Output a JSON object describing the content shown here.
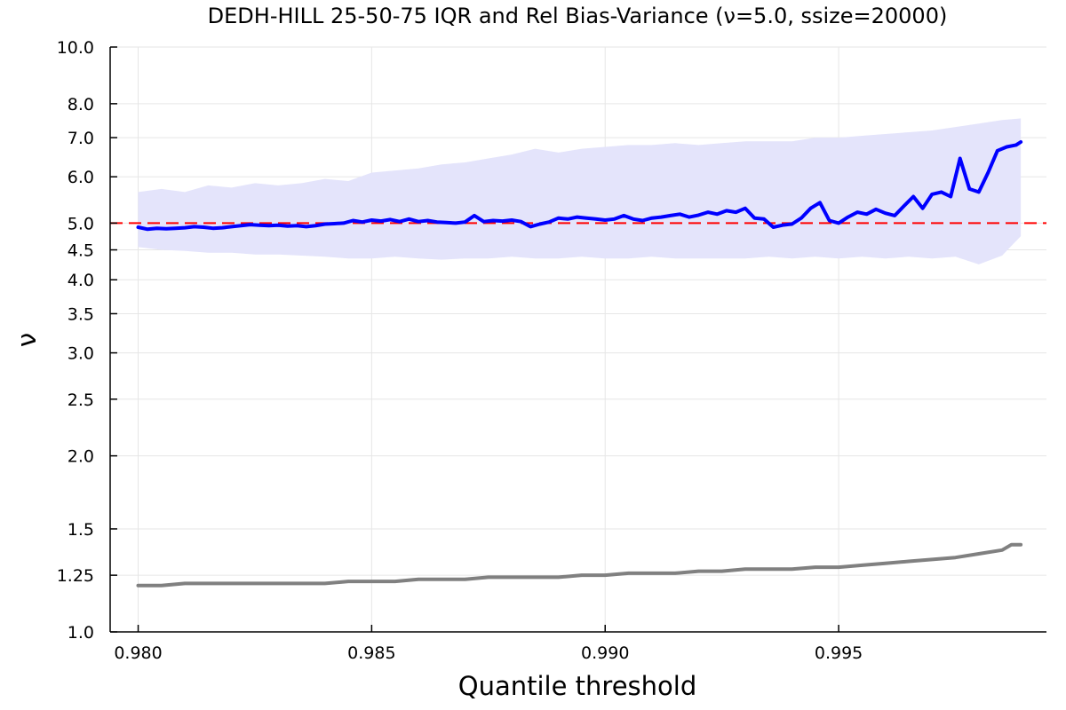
{
  "chart_data": {
    "type": "line",
    "title": "DEDH-HILL 25-50-75 IQR and Rel Bias-Variance (ν=5.0, ssize=20000)",
    "xlabel": "Quantile threshold",
    "ylabel": "ν",
    "xlim": [
      0.9794,
      0.99945
    ],
    "ylim": [
      1.0,
      10.0
    ],
    "yscale": "log",
    "grid": true,
    "legend": "none",
    "x_ticks": [
      0.98,
      0.985,
      0.99,
      0.995
    ],
    "x_tick_labels": [
      "0.980",
      "0.985",
      "0.990",
      "0.995"
    ],
    "y_ticks": [
      1.0,
      1.25,
      1.5,
      2.0,
      2.5,
      3.0,
      3.5,
      4.0,
      4.5,
      5.0,
      6.0,
      7.0,
      8.0,
      10.0
    ],
    "y_tick_labels": [
      "1.0",
      "1.25",
      "1.5",
      "2.0",
      "2.5",
      "3.0",
      "3.5",
      "4.0",
      "4.5",
      "5.0",
      "6.0",
      "7.0",
      "8.0",
      "10.0"
    ],
    "reference_line": {
      "y": 5.0,
      "color": "#ff0000",
      "style": "dashed"
    },
    "band": {
      "color": "#e4e4fb",
      "x": [
        0.98,
        0.9805,
        0.981,
        0.9815,
        0.982,
        0.9825,
        0.983,
        0.9835,
        0.984,
        0.9845,
        0.985,
        0.9855,
        0.986,
        0.9865,
        0.987,
        0.9875,
        0.988,
        0.9885,
        0.989,
        0.9895,
        0.99,
        0.9905,
        0.991,
        0.9915,
        0.992,
        0.9925,
        0.993,
        0.9935,
        0.994,
        0.9945,
        0.995,
        0.9955,
        0.996,
        0.9965,
        0.997,
        0.9975,
        0.998,
        0.9985,
        0.9989
      ],
      "lower": [
        4.55,
        4.5,
        4.48,
        4.45,
        4.45,
        4.42,
        4.42,
        4.4,
        4.38,
        4.35,
        4.35,
        4.38,
        4.35,
        4.33,
        4.35,
        4.35,
        4.38,
        4.35,
        4.35,
        4.38,
        4.35,
        4.35,
        4.38,
        4.35,
        4.35,
        4.35,
        4.35,
        4.38,
        4.35,
        4.38,
        4.35,
        4.38,
        4.35,
        4.38,
        4.35,
        4.38,
        4.25,
        4.4,
        4.75
      ],
      "upper": [
        5.65,
        5.72,
        5.65,
        5.8,
        5.75,
        5.85,
        5.8,
        5.85,
        5.95,
        5.9,
        6.1,
        6.15,
        6.2,
        6.3,
        6.35,
        6.45,
        6.55,
        6.7,
        6.6,
        6.7,
        6.75,
        6.8,
        6.8,
        6.85,
        6.8,
        6.85,
        6.9,
        6.9,
        6.9,
        7.0,
        7.0,
        7.05,
        7.1,
        7.15,
        7.2,
        7.3,
        7.4,
        7.5,
        7.55
      ]
    },
    "series": [
      {
        "color": "#0000ff",
        "x": [
          0.98,
          0.9802,
          0.9804,
          0.9806,
          0.9808,
          0.981,
          0.9812,
          0.9814,
          0.9816,
          0.9818,
          0.982,
          0.9822,
          0.9824,
          0.9826,
          0.9828,
          0.983,
          0.9832,
          0.9834,
          0.9836,
          0.9838,
          0.984,
          0.9842,
          0.9844,
          0.9846,
          0.9848,
          0.985,
          0.9852,
          0.9854,
          0.9856,
          0.9858,
          0.986,
          0.9862,
          0.9864,
          0.9866,
          0.9868,
          0.987,
          0.9872,
          0.9874,
          0.9876,
          0.9878,
          0.988,
          0.9882,
          0.9884,
          0.9886,
          0.9888,
          0.989,
          0.9892,
          0.9894,
          0.9896,
          0.9898,
          0.99,
          0.9902,
          0.9904,
          0.9906,
          0.9908,
          0.991,
          0.9912,
          0.9914,
          0.9916,
          0.9918,
          0.992,
          0.9922,
          0.9924,
          0.9926,
          0.9928,
          0.993,
          0.9932,
          0.9934,
          0.9936,
          0.9938,
          0.994,
          0.9942,
          0.9944,
          0.9946,
          0.9948,
          0.995,
          0.9952,
          0.9954,
          0.9956,
          0.9958,
          0.996,
          0.9962,
          0.9964,
          0.9966,
          0.9968,
          0.997,
          0.9972,
          0.9974,
          0.9976,
          0.9978,
          0.998,
          0.9982,
          0.9984,
          0.9986,
          0.9988,
          0.9989
        ],
        "values": [
          4.92,
          4.88,
          4.9,
          4.89,
          4.9,
          4.91,
          4.93,
          4.92,
          4.9,
          4.91,
          4.93,
          4.95,
          4.97,
          4.96,
          4.95,
          4.96,
          4.94,
          4.95,
          4.93,
          4.95,
          4.98,
          4.99,
          5.0,
          5.05,
          5.02,
          5.06,
          5.04,
          5.07,
          5.03,
          5.08,
          5.03,
          5.05,
          5.02,
          5.01,
          5.0,
          5.02,
          5.15,
          5.03,
          5.05,
          5.04,
          5.06,
          5.03,
          4.93,
          4.98,
          5.02,
          5.1,
          5.08,
          5.12,
          5.1,
          5.08,
          5.06,
          5.08,
          5.15,
          5.08,
          5.05,
          5.1,
          5.12,
          5.15,
          5.18,
          5.12,
          5.16,
          5.22,
          5.18,
          5.25,
          5.22,
          5.3,
          5.1,
          5.08,
          4.92,
          4.96,
          4.98,
          5.1,
          5.3,
          5.42,
          5.05,
          5.0,
          5.12,
          5.22,
          5.18,
          5.28,
          5.2,
          5.15,
          5.35,
          5.55,
          5.3,
          5.6,
          5.65,
          5.55,
          6.45,
          5.72,
          5.65,
          6.1,
          6.65,
          6.75,
          6.8,
          6.88
        ]
      },
      {
        "color": "#808080",
        "x": [
          0.98,
          0.9805,
          0.981,
          0.9815,
          0.982,
          0.9825,
          0.983,
          0.9835,
          0.984,
          0.9845,
          0.985,
          0.9855,
          0.986,
          0.9865,
          0.987,
          0.9875,
          0.988,
          0.9885,
          0.989,
          0.9895,
          0.99,
          0.9905,
          0.991,
          0.9915,
          0.992,
          0.9925,
          0.993,
          0.9935,
          0.994,
          0.9945,
          0.995,
          0.9955,
          0.996,
          0.9965,
          0.997,
          0.9975,
          0.998,
          0.9985,
          0.9987,
          0.9989
        ],
        "values": [
          1.2,
          1.2,
          1.21,
          1.21,
          1.21,
          1.21,
          1.21,
          1.21,
          1.21,
          1.22,
          1.22,
          1.22,
          1.23,
          1.23,
          1.23,
          1.24,
          1.24,
          1.24,
          1.24,
          1.25,
          1.25,
          1.26,
          1.26,
          1.26,
          1.27,
          1.27,
          1.28,
          1.28,
          1.28,
          1.29,
          1.29,
          1.3,
          1.31,
          1.32,
          1.33,
          1.34,
          1.36,
          1.38,
          1.41,
          1.41
        ]
      }
    ]
  }
}
